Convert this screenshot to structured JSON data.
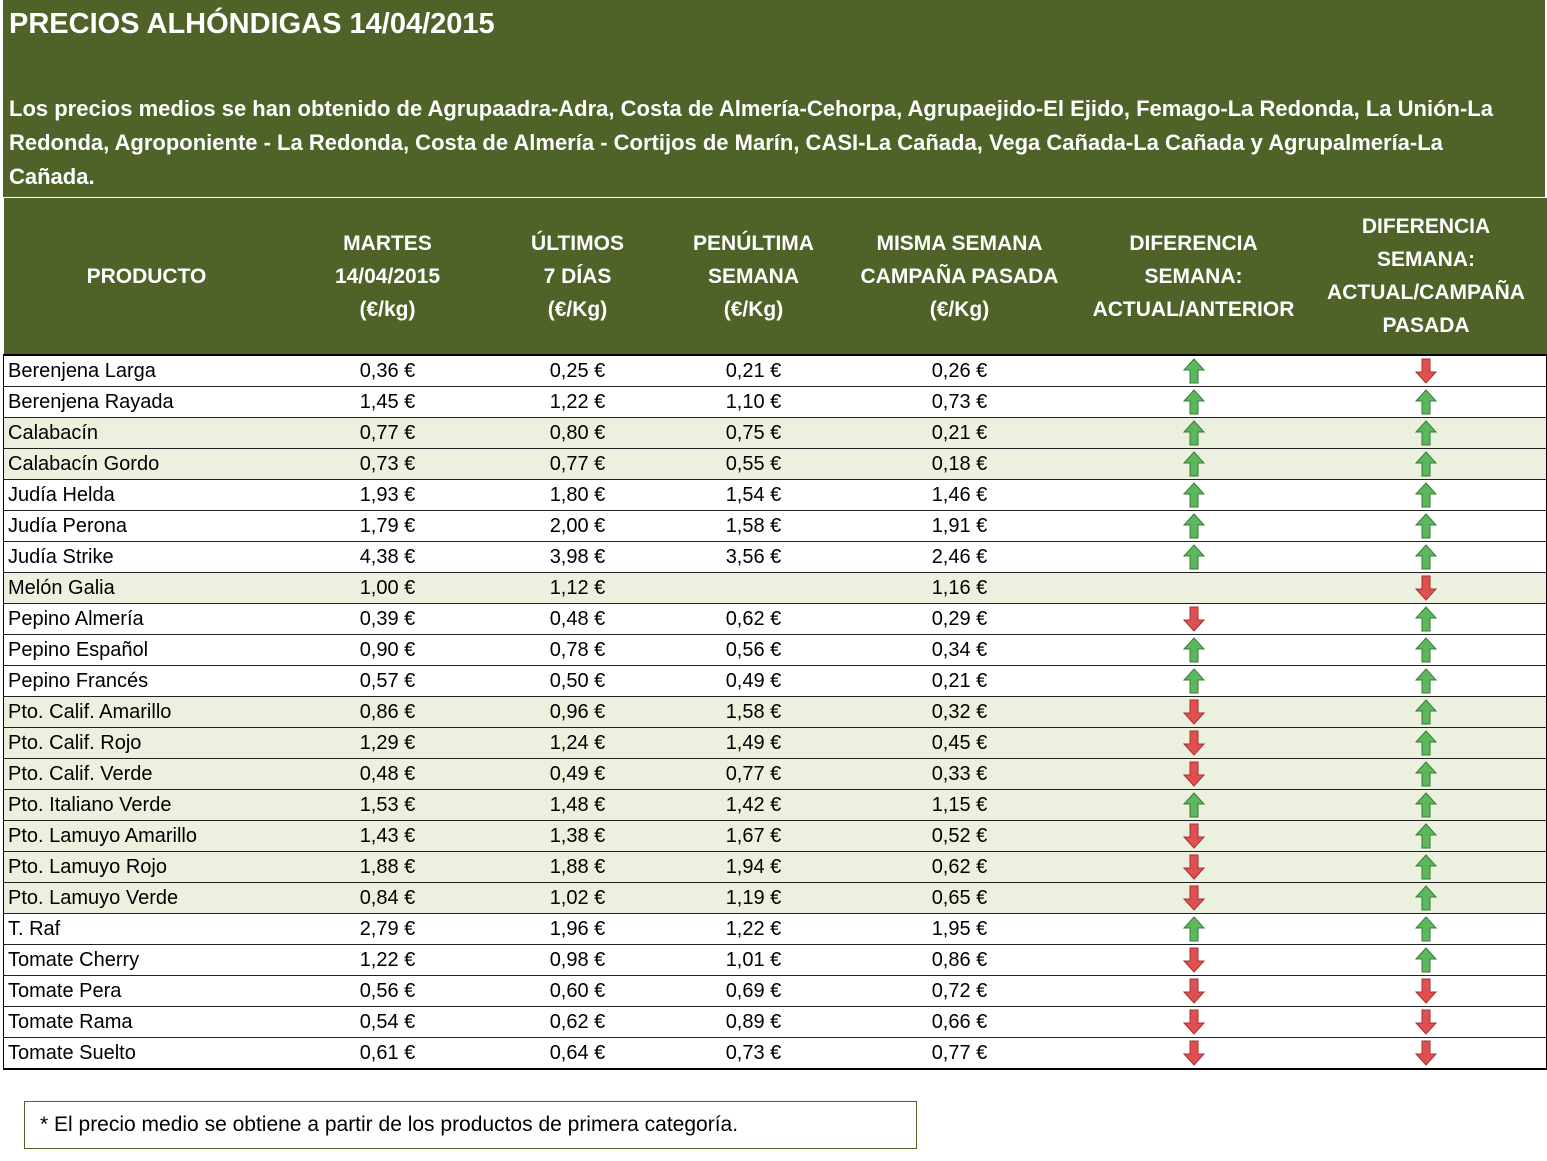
{
  "title": "PRECIOS ALHÓNDIGAS 14/04/2015",
  "description": "Los precios medios se han obtenido de Agrupaadra-Adra, Costa de Almería-Cehorpa, Agrupaejido-El Ejido, Femago-La Redonda, La Unión-La Redonda, Agroponiente - La Redonda, Costa de Almería - Cortijos de Marín, CASI-La Cañada, Vega Cañada-La Cañada y Agrupalmería-La Cañada.",
  "colors": {
    "header_bg": "#4f6228",
    "row_shade": "#ebf1de",
    "arrow_up": "#5cb85c",
    "arrow_down": "#e05050"
  },
  "columns": [
    [
      "PRODUCTO"
    ],
    [
      "MARTES",
      "14/04/2015",
      "(€/kg)"
    ],
    [
      "ÚLTIMOS",
      "7 DÍAS",
      "(€/Kg)"
    ],
    [
      "PENÚLTIMA",
      "SEMANA",
      "(€/Kg)"
    ],
    [
      "MISMA SEMANA",
      "CAMPAÑA PASADA",
      "(€/Kg)"
    ],
    [
      "DIFERENCIA",
      "SEMANA:",
      "ACTUAL/ANTERIOR"
    ],
    [
      "DIFERENCIA",
      "SEMANA:",
      "ACTUAL/CAMPAÑA",
      "PASADA"
    ]
  ],
  "rows": [
    {
      "producto": "Berenjena Larga",
      "martes": "0,36 €",
      "ultimos": "0,25 €",
      "penultima": "0,21 €",
      "misma": "0,26 €",
      "dif_anterior": "up",
      "dif_campana": "down",
      "shaded": false
    },
    {
      "producto": "Berenjena Rayada",
      "martes": "1,45 €",
      "ultimos": "1,22 €",
      "penultima": "1,10 €",
      "misma": "0,73 €",
      "dif_anterior": "up",
      "dif_campana": "up",
      "shaded": false
    },
    {
      "producto": "Calabacín",
      "martes": "0,77 €",
      "ultimos": "0,80 €",
      "penultima": "0,75 €",
      "misma": "0,21 €",
      "dif_anterior": "up",
      "dif_campana": "up",
      "shaded": true
    },
    {
      "producto": "Calabacín Gordo",
      "martes": "0,73 €",
      "ultimos": "0,77 €",
      "penultima": "0,55 €",
      "misma": "0,18 €",
      "dif_anterior": "up",
      "dif_campana": "up",
      "shaded": true
    },
    {
      "producto": "Judía Helda",
      "martes": "1,93 €",
      "ultimos": "1,80 €",
      "penultima": "1,54 €",
      "misma": "1,46 €",
      "dif_anterior": "up",
      "dif_campana": "up",
      "shaded": false
    },
    {
      "producto": "Judía Perona",
      "martes": "1,79 €",
      "ultimos": "2,00 €",
      "penultima": "1,58 €",
      "misma": "1,91 €",
      "dif_anterior": "up",
      "dif_campana": "up",
      "shaded": false
    },
    {
      "producto": "Judía Strike",
      "martes": "4,38 €",
      "ultimos": "3,98 €",
      "penultima": "3,56 €",
      "misma": "2,46 €",
      "dif_anterior": "up",
      "dif_campana": "up",
      "shaded": false
    },
    {
      "producto": "Melón Galia",
      "martes": "1,00 €",
      "ultimos": "1,12 €",
      "penultima": "",
      "misma": "1,16 €",
      "dif_anterior": "",
      "dif_campana": "down",
      "shaded": true
    },
    {
      "producto": "Pepino Almería",
      "martes": "0,39 €",
      "ultimos": "0,48 €",
      "penultima": "0,62 €",
      "misma": "0,29 €",
      "dif_anterior": "down",
      "dif_campana": "up",
      "shaded": false
    },
    {
      "producto": "Pepino Español",
      "martes": "0,90 €",
      "ultimos": "0,78 €",
      "penultima": "0,56 €",
      "misma": "0,34 €",
      "dif_anterior": "up",
      "dif_campana": "up",
      "shaded": false
    },
    {
      "producto": "Pepino Francés",
      "martes": "0,57 €",
      "ultimos": "0,50 €",
      "penultima": "0,49 €",
      "misma": "0,21 €",
      "dif_anterior": "up",
      "dif_campana": "up",
      "shaded": false
    },
    {
      "producto": "Pto. Calif. Amarillo",
      "martes": "0,86 €",
      "ultimos": "0,96 €",
      "penultima": "1,58 €",
      "misma": "0,32 €",
      "dif_anterior": "down",
      "dif_campana": "up",
      "shaded": true
    },
    {
      "producto": "Pto. Calif. Rojo",
      "martes": "1,29 €",
      "ultimos": "1,24 €",
      "penultima": "1,49 €",
      "misma": "0,45 €",
      "dif_anterior": "down",
      "dif_campana": "up",
      "shaded": true
    },
    {
      "producto": "Pto. Calif. Verde",
      "martes": "0,48 €",
      "ultimos": "0,49 €",
      "penultima": "0,77 €",
      "misma": "0,33 €",
      "dif_anterior": "down",
      "dif_campana": "up",
      "shaded": true
    },
    {
      "producto": "Pto. Italiano Verde",
      "martes": "1,53 €",
      "ultimos": "1,48 €",
      "penultima": "1,42 €",
      "misma": "1,15 €",
      "dif_anterior": "up",
      "dif_campana": "up",
      "shaded": true
    },
    {
      "producto": "Pto. Lamuyo Amarillo",
      "martes": "1,43 €",
      "ultimos": "1,38 €",
      "penultima": "1,67 €",
      "misma": "0,52 €",
      "dif_anterior": "down",
      "dif_campana": "up",
      "shaded": true
    },
    {
      "producto": "Pto. Lamuyo Rojo",
      "martes": "1,88 €",
      "ultimos": "1,88 €",
      "penultima": "1,94 €",
      "misma": "0,62 €",
      "dif_anterior": "down",
      "dif_campana": "up",
      "shaded": true
    },
    {
      "producto": "Pto. Lamuyo Verde",
      "martes": "0,84 €",
      "ultimos": "1,02 €",
      "penultima": "1,19 €",
      "misma": "0,65 €",
      "dif_anterior": "down",
      "dif_campana": "up",
      "shaded": true
    },
    {
      "producto": "T. Raf",
      "martes": "2,79 €",
      "ultimos": "1,96 €",
      "penultima": "1,22 €",
      "misma": "1,95 €",
      "dif_anterior": "up",
      "dif_campana": "up",
      "shaded": false
    },
    {
      "producto": "Tomate Cherry",
      "martes": "1,22 €",
      "ultimos": "0,98 €",
      "penultima": "1,01 €",
      "misma": "0,86 €",
      "dif_anterior": "down",
      "dif_campana": "up",
      "shaded": false
    },
    {
      "producto": "Tomate Pera",
      "martes": "0,56 €",
      "ultimos": "0,60 €",
      "penultima": "0,69 €",
      "misma": "0,72 €",
      "dif_anterior": "down",
      "dif_campana": "down",
      "shaded": false
    },
    {
      "producto": "Tomate Rama",
      "martes": "0,54 €",
      "ultimos": "0,62 €",
      "penultima": "0,89 €",
      "misma": "0,66 €",
      "dif_anterior": "down",
      "dif_campana": "down",
      "shaded": false
    },
    {
      "producto": "Tomate Suelto",
      "martes": "0,61 €",
      "ultimos": "0,64 €",
      "penultima": "0,73 €",
      "misma": "0,77 €",
      "dif_anterior": "down",
      "dif_campana": "down",
      "shaded": false
    }
  ],
  "footnote": "* El precio medio se obtiene a partir de los productos de primera categoría."
}
